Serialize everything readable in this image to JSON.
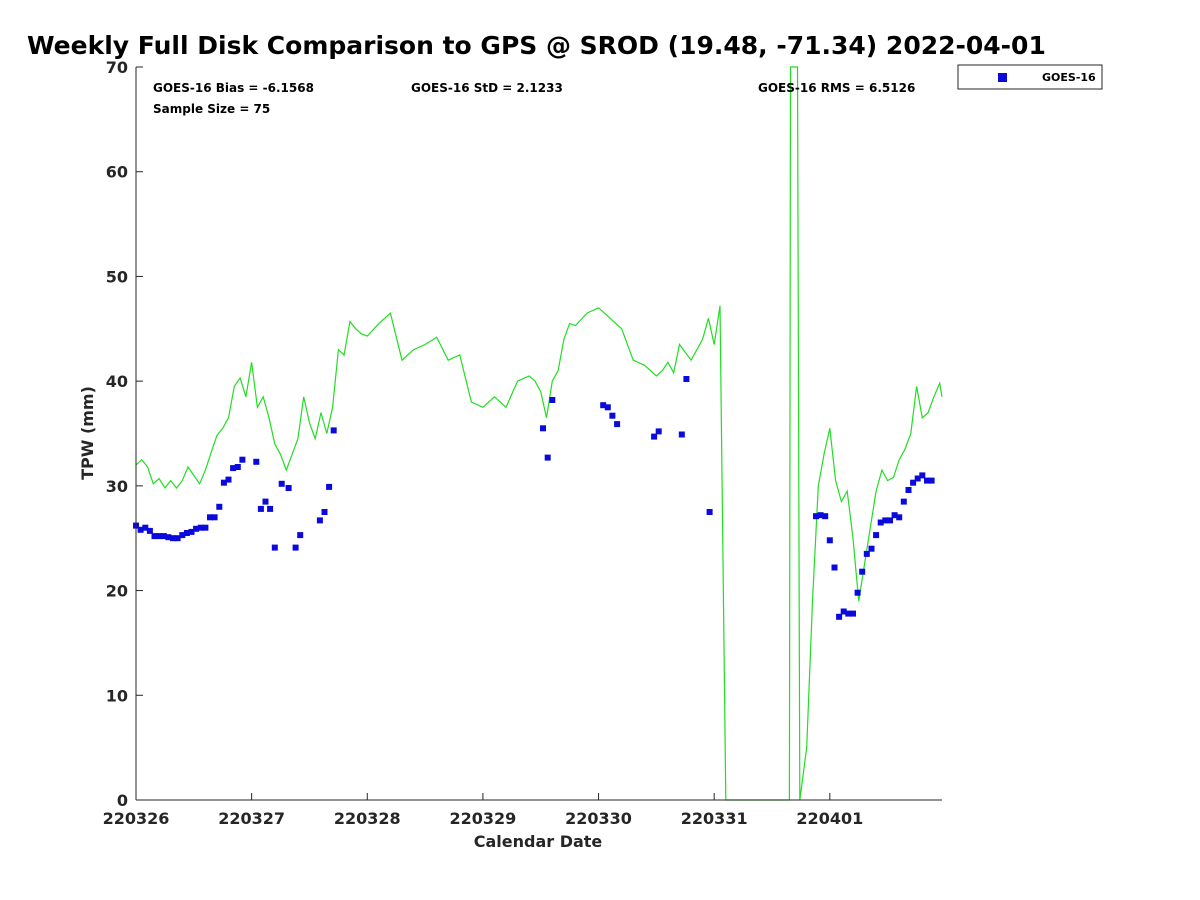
{
  "chart_data": {
    "type": "scatter",
    "title": "Weekly Full Disk Comparison to GPS @ SROD (19.48, -71.34) 2022-04-01",
    "xlabel": "Calendar Date",
    "ylabel": "TPW (mm)",
    "xticks": [
      "220326",
      "220327",
      "220328",
      "220329",
      "220330",
      "220331",
      "220401"
    ],
    "xlim": [
      0,
      6.97
    ],
    "ylim": [
      0,
      70
    ],
    "yticks": [
      0,
      10,
      20,
      30,
      40,
      50,
      60,
      70
    ],
    "grid": false,
    "legend_position": "outside-top-right",
    "stats": {
      "bias": "GOES-16 Bias = -6.1568",
      "std": "GOES-16 StD = 2.1233",
      "rms": "GOES-16 RMS = 6.5126",
      "sample_size": "Sample Size = 75"
    },
    "colors": {
      "goes": "#0a0adc",
      "gps": "#22dd22"
    },
    "series": [
      {
        "name": "GOES-16",
        "marker": "square",
        "x": [
          0.0,
          0.04,
          0.08,
          0.12,
          0.16,
          0.2,
          0.24,
          0.28,
          0.32,
          0.36,
          0.4,
          0.44,
          0.48,
          0.52,
          0.56,
          0.6,
          0.64,
          0.68,
          0.72,
          0.76,
          0.8,
          0.84,
          0.88,
          0.92,
          1.04,
          1.08,
          1.12,
          1.16,
          1.2,
          1.26,
          1.32,
          1.38,
          1.42,
          1.59,
          1.63,
          1.67,
          1.71,
          3.52,
          3.56,
          3.6,
          4.04,
          4.08,
          4.12,
          4.16,
          4.48,
          4.52,
          4.72,
          4.76,
          4.96,
          5.88,
          5.92,
          5.96,
          6.0,
          6.04,
          6.08,
          6.12,
          6.16,
          6.2,
          6.24,
          6.28,
          6.32,
          6.36,
          6.4,
          6.44,
          6.48,
          6.52,
          6.56,
          6.6,
          6.64,
          6.68,
          6.72,
          6.76,
          6.8,
          6.84,
          6.88
        ],
        "y": [
          26.2,
          25.8,
          26.0,
          25.7,
          25.2,
          25.2,
          25.2,
          25.1,
          25.0,
          25.0,
          25.3,
          25.5,
          25.6,
          25.9,
          26.0,
          26.0,
          27.0,
          27.0,
          28.0,
          30.3,
          30.6,
          31.7,
          31.8,
          32.5,
          32.3,
          27.8,
          28.5,
          27.8,
          24.1,
          30.2,
          29.8,
          24.1,
          25.3,
          26.7,
          27.5,
          29.9,
          35.3,
          35.5,
          32.7,
          38.2,
          37.7,
          37.5,
          36.7,
          35.9,
          34.7,
          35.2,
          34.9,
          40.2,
          27.5,
          27.1,
          27.2,
          27.1,
          24.8,
          22.2,
          17.5,
          18.0,
          17.8,
          17.8,
          19.8,
          21.8,
          23.5,
          24.0,
          25.3,
          26.5,
          26.7,
          26.7,
          27.2,
          27.0,
          28.5,
          29.6,
          30.3,
          30.7,
          31.0,
          30.5,
          30.5
        ]
      },
      {
        "name": "",
        "type": "line",
        "x": [
          0.0,
          0.05,
          0.1,
          0.15,
          0.2,
          0.25,
          0.3,
          0.35,
          0.4,
          0.45,
          0.5,
          0.55,
          0.6,
          0.65,
          0.7,
          0.75,
          0.8,
          0.85,
          0.9,
          0.95,
          1.0,
          1.05,
          1.1,
          1.15,
          1.2,
          1.25,
          1.3,
          1.35,
          1.4,
          1.45,
          1.5,
          1.55,
          1.6,
          1.65,
          1.7,
          1.75,
          1.8,
          1.85,
          1.9,
          1.95,
          2.0,
          2.1,
          2.2,
          2.3,
          2.4,
          2.5,
          2.6,
          2.7,
          2.8,
          2.9,
          3.0,
          3.1,
          3.2,
          3.3,
          3.4,
          3.45,
          3.5,
          3.55,
          3.6,
          3.65,
          3.7,
          3.75,
          3.8,
          3.9,
          4.0,
          4.1,
          4.2,
          4.3,
          4.4,
          4.5,
          4.55,
          4.6,
          4.65,
          4.7,
          4.8,
          4.9,
          4.95,
          5.0,
          5.05,
          5.1,
          5.65,
          5.66,
          5.68,
          5.72,
          5.74,
          5.8,
          5.85,
          5.9,
          5.95,
          6.0,
          6.05,
          6.1,
          6.15,
          6.2,
          6.25,
          6.3,
          6.35,
          6.4,
          6.45,
          6.5,
          6.55,
          6.6,
          6.65,
          6.7,
          6.75,
          6.8,
          6.85,
          6.9,
          6.95,
          6.97
        ],
        "y": [
          32.0,
          32.5,
          31.8,
          30.2,
          30.7,
          29.8,
          30.5,
          29.8,
          30.5,
          31.8,
          31.0,
          30.2,
          31.5,
          33.2,
          34.8,
          35.5,
          36.5,
          39.5,
          40.3,
          38.5,
          41.8,
          37.5,
          38.5,
          36.5,
          34.0,
          33.0,
          31.5,
          33.0,
          34.5,
          38.5,
          36.0,
          34.5,
          37.0,
          35.0,
          37.5,
          43.0,
          42.5,
          45.7,
          45.0,
          44.5,
          44.3,
          45.5,
          46.5,
          42.0,
          43.0,
          43.5,
          44.2,
          42.0,
          42.5,
          38.0,
          37.5,
          38.5,
          37.5,
          40.0,
          40.5,
          40.0,
          39.0,
          36.5,
          40.0,
          41.0,
          44.0,
          45.5,
          45.3,
          46.5,
          47.0,
          46.0,
          45.0,
          42.0,
          41.5,
          40.5,
          41.0,
          41.8,
          40.8,
          43.5,
          42.0,
          44.0,
          46.0,
          43.5,
          47.2,
          0.0,
          0.0,
          70.0,
          70.0,
          70.0,
          0.0,
          5.0,
          19.0,
          30.0,
          33.0,
          35.5,
          30.5,
          28.5,
          29.5,
          25.0,
          19.0,
          22.5,
          26.0,
          29.5,
          31.5,
          30.5,
          30.8,
          32.5,
          33.5,
          35.0,
          39.5,
          36.5,
          37.0,
          38.5,
          39.8,
          38.5
        ]
      }
    ]
  }
}
